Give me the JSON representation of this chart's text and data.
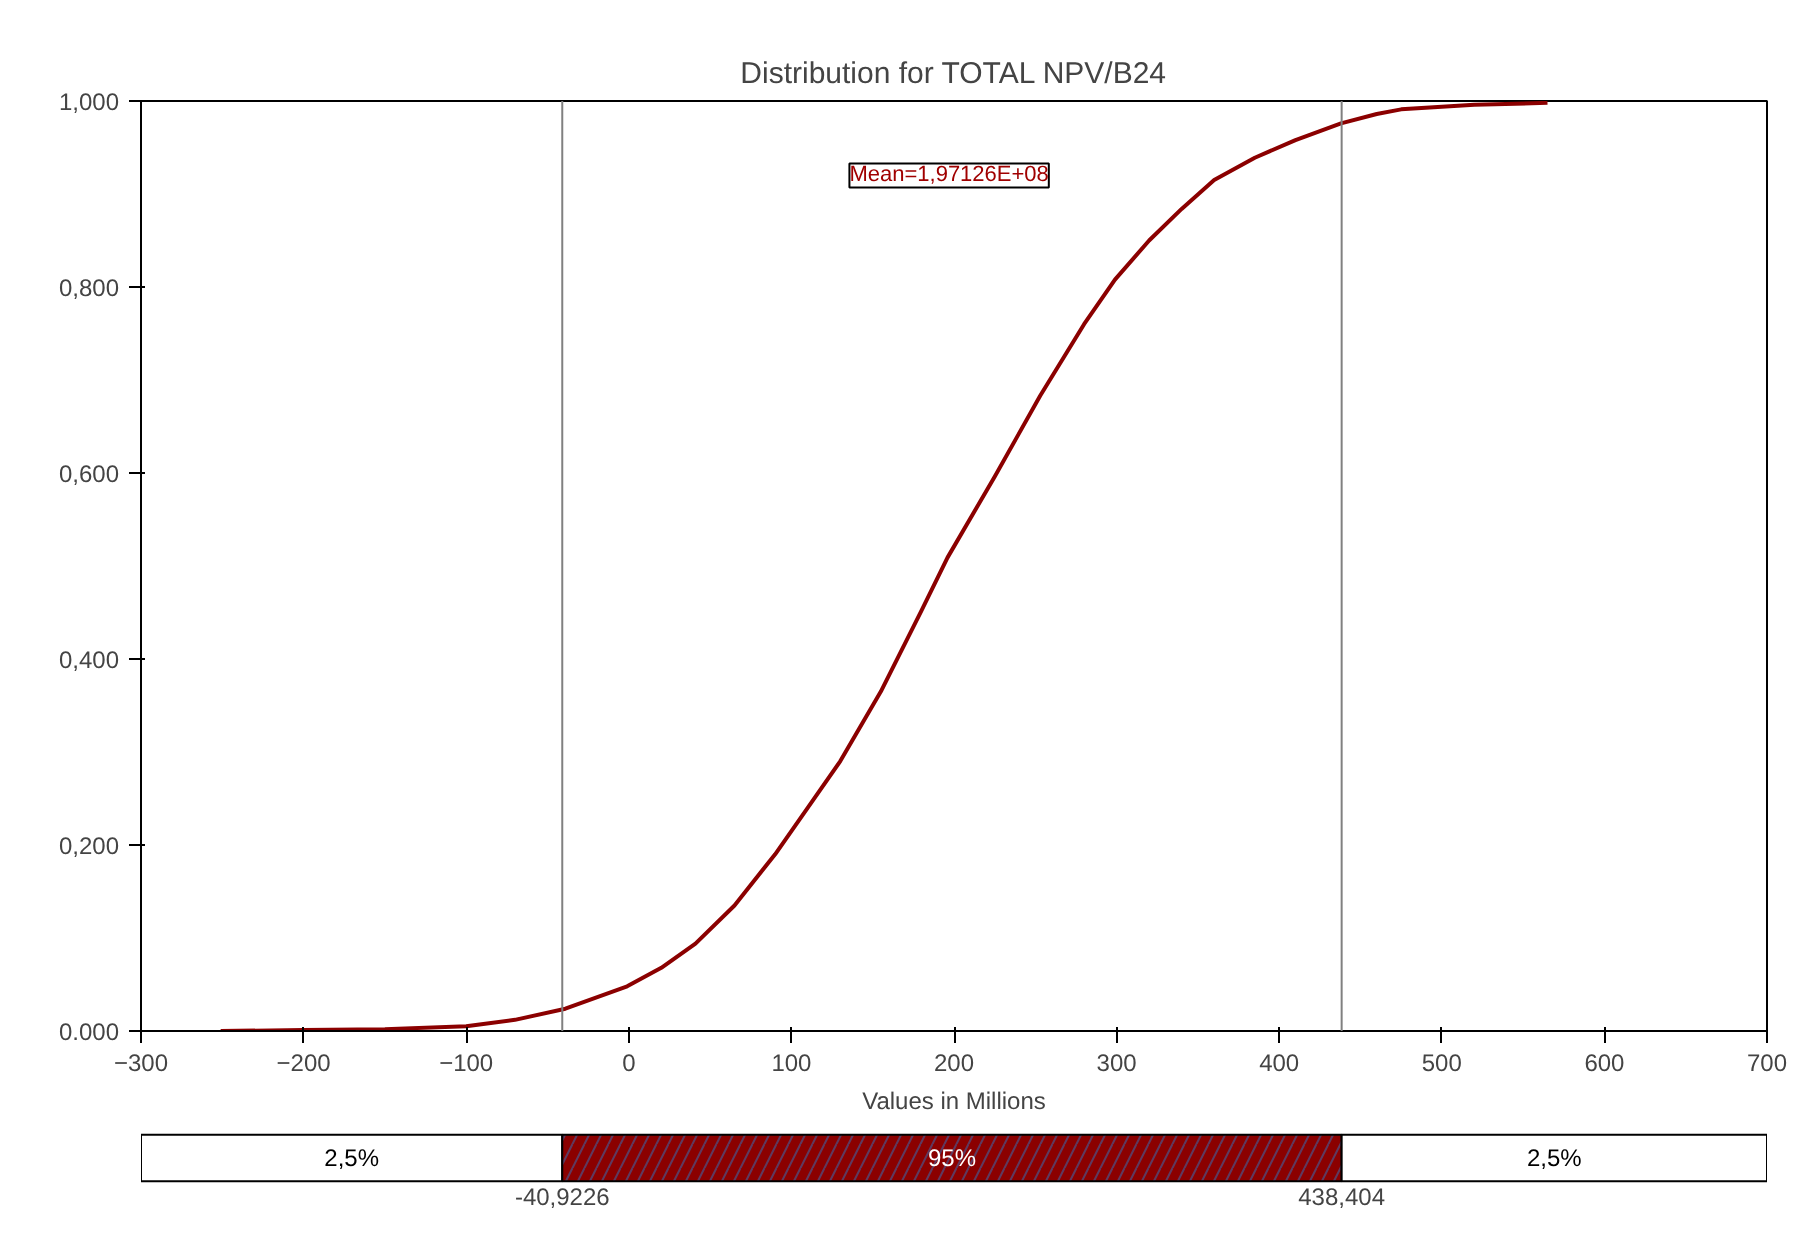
{
  "chart_data": [
    {
      "type": "line",
      "title": "Distribution for TOTAL NPV/B24",
      "xlabel": "Values in Millions",
      "x": [
        -251,
        -200,
        -150,
        -100,
        -70,
        -39,
        -1,
        20,
        41,
        65,
        90,
        110,
        130,
        155,
        180,
        196,
        225,
        253,
        280,
        299,
        320,
        340,
        360,
        385,
        410,
        438,
        460,
        475,
        520,
        565
      ],
      "series": [
        {
          "color": "#8b0000",
          "values": [
            0,
            0.001,
            0.002,
            0.005,
            0.012,
            0.024,
            0.048,
            0.068,
            0.094,
            0.135,
            0.19,
            0.24,
            0.29,
            0.365,
            0.452,
            0.509,
            0.596,
            0.683,
            0.76,
            0.808,
            0.85,
            0.884,
            0.915,
            0.939,
            0.958,
            0.976,
            0.986,
            0.991,
            0.996,
            0.998
          ]
        }
      ],
      "xlim": [
        -300,
        700
      ],
      "ylim": [
        0,
        1
      ],
      "xticks": [
        -300,
        -200,
        -100,
        0,
        100,
        200,
        300,
        400,
        500,
        600,
        700
      ],
      "yticks": [
        {
          "value": 0,
          "label": "0.000"
        },
        {
          "value": 0.2,
          "label": "0,200"
        },
        {
          "value": 0.4,
          "label": "0,400"
        },
        {
          "value": 0.6,
          "label": "0,600"
        },
        {
          "value": 0.8,
          "label": "0,800"
        },
        {
          "value": 1,
          "label": "1,000"
        }
      ],
      "ref_lines": [
        {
          "axis": "x",
          "value": -40.9226,
          "color": "#808080"
        },
        {
          "axis": "x",
          "value": 438.404,
          "color": "#808080"
        }
      ],
      "annotations": [
        "Mean=1,97126E+08"
      ],
      "grid": false,
      "line_style": "solid",
      "marker": "none"
    },
    {
      "type": "other",
      "annotations": [
        "2,5%",
        "95%",
        "2,5%",
        "-40,9226",
        "438,404"
      ]
    }
  ]
}
